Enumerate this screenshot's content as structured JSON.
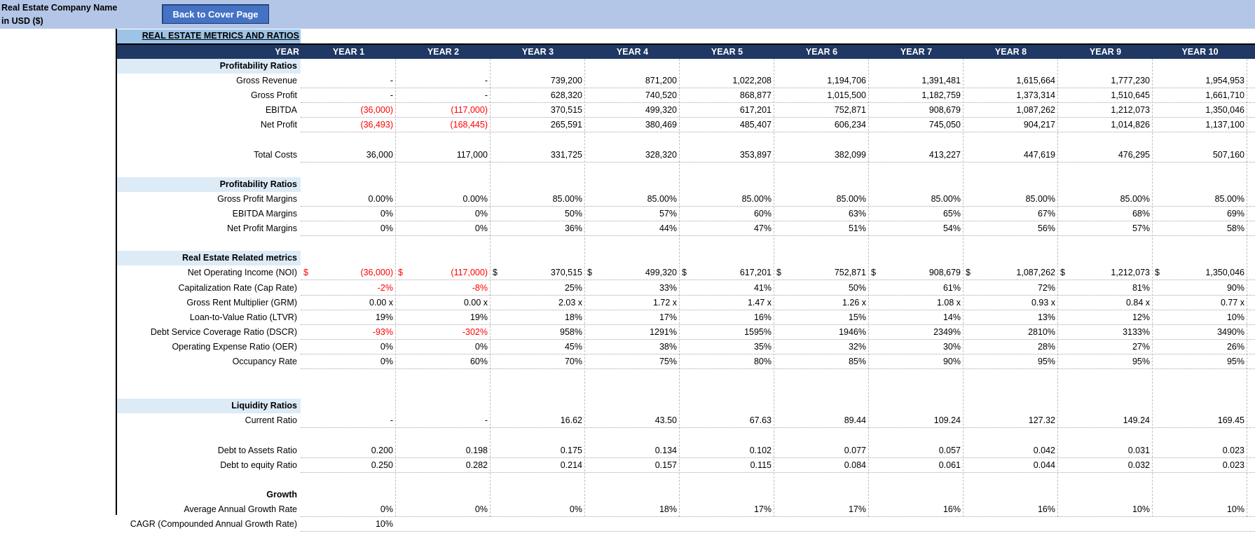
{
  "header": {
    "company_line1": "Real Estate Company Name",
    "company_line2": "in USD ($)",
    "back_button": "Back to Cover Page"
  },
  "sheet_title": "REAL ESTATE METRICS AND RATIOS",
  "year_label": "YEAR",
  "years": [
    "YEAR 1",
    "YEAR 2",
    "YEAR 3",
    "YEAR 4",
    "YEAR 5",
    "YEAR 6",
    "YEAR 7",
    "YEAR 8",
    "YEAR 9",
    "YEAR 10"
  ],
  "rows": [
    {
      "type": "section",
      "label": "Profitability Ratios"
    },
    {
      "label": "Gross Revenue",
      "values": [
        "-",
        "-",
        "739,200",
        "871,200",
        "1,022,208",
        "1,194,706",
        "1,391,481",
        "1,615,664",
        "1,777,230",
        "1,954,953"
      ]
    },
    {
      "label": "Gross Profit",
      "values": [
        "-",
        "-",
        "628,320",
        "740,520",
        "868,877",
        "1,015,500",
        "1,182,759",
        "1,373,314",
        "1,510,645",
        "1,661,710"
      ]
    },
    {
      "label": "EBITDA",
      "values": [
        "(36,000)",
        "(117,000)",
        "370,515",
        "499,320",
        "617,201",
        "752,871",
        "908,679",
        "1,087,262",
        "1,212,073",
        "1,350,046"
      ]
    },
    {
      "label": "Net Profit",
      "values": [
        "(36,493)",
        "(168,445)",
        "265,591",
        "380,469",
        "485,407",
        "606,234",
        "745,050",
        "904,217",
        "1,014,826",
        "1,137,100"
      ]
    },
    {
      "type": "blank"
    },
    {
      "label": "Total Costs",
      "values": [
        "36,000",
        "117,000",
        "331,725",
        "328,320",
        "353,897",
        "382,099",
        "413,227",
        "447,619",
        "476,295",
        "507,160"
      ]
    },
    {
      "type": "blank"
    },
    {
      "type": "section",
      "label": "Profitability Ratios"
    },
    {
      "label": "Gross Profit Margins",
      "values": [
        "0.00%",
        "0.00%",
        "85.00%",
        "85.00%",
        "85.00%",
        "85.00%",
        "85.00%",
        "85.00%",
        "85.00%",
        "85.00%"
      ]
    },
    {
      "label": "EBITDA Margins",
      "values": [
        "0%",
        "0%",
        "50%",
        "57%",
        "60%",
        "63%",
        "65%",
        "67%",
        "68%",
        "69%"
      ]
    },
    {
      "label": "Net Profit Margins",
      "values": [
        "0%",
        "0%",
        "36%",
        "44%",
        "47%",
        "51%",
        "54%",
        "56%",
        "57%",
        "58%"
      ]
    },
    {
      "type": "blank"
    },
    {
      "type": "section",
      "label": "Real Estate Related metrics"
    },
    {
      "label": "Net Operating Income (NOI)",
      "dollar": "$",
      "values": [
        "(36,000)",
        "(117,000)",
        "370,515",
        "499,320",
        "617,201",
        "752,871",
        "908,679",
        "1,087,262",
        "1,212,073",
        "1,350,046"
      ]
    },
    {
      "label": "Capitalization Rate (Cap Rate)",
      "values": [
        "-2%",
        "-8%",
        "25%",
        "33%",
        "41%",
        "50%",
        "61%",
        "72%",
        "81%",
        "90%"
      ]
    },
    {
      "label": "Gross Rent Multiplier (GRM)",
      "values": [
        "0.00 x",
        "0.00 x",
        "2.03 x",
        "1.72 x",
        "1.47 x",
        "1.26 x",
        "1.08 x",
        "0.93 x",
        "0.84 x",
        "0.77 x"
      ]
    },
    {
      "label": "Loan-to-Value Ratio (LTVR)",
      "values": [
        "19%",
        "19%",
        "18%",
        "17%",
        "16%",
        "15%",
        "14%",
        "13%",
        "12%",
        "10%"
      ]
    },
    {
      "label": "Debt Service Coverage Ratio (DSCR)",
      "values": [
        "-93%",
        "-302%",
        "958%",
        "1291%",
        "1595%",
        "1946%",
        "2349%",
        "2810%",
        "3133%",
        "3490%"
      ]
    },
    {
      "label": "Operating Expense Ratio (OER)",
      "values": [
        "0%",
        "0%",
        "45%",
        "38%",
        "35%",
        "32%",
        "30%",
        "28%",
        "27%",
        "26%"
      ]
    },
    {
      "label": "Occupancy Rate",
      "values": [
        "0%",
        "60%",
        "70%",
        "75%",
        "80%",
        "85%",
        "90%",
        "95%",
        "95%",
        "95%"
      ]
    },
    {
      "type": "blank"
    },
    {
      "type": "blank"
    },
    {
      "type": "section",
      "label": "Liquidity Ratios"
    },
    {
      "label": "Current Ratio",
      "values": [
        "-",
        "-",
        "16.62",
        "43.50",
        "67.63",
        "89.44",
        "109.24",
        "127.32",
        "149.24",
        "169.45"
      ]
    },
    {
      "type": "blank"
    },
    {
      "label": "Debt to Assets Ratio",
      "values": [
        "0.200",
        "0.198",
        "0.175",
        "0.134",
        "0.102",
        "0.077",
        "0.057",
        "0.042",
        "0.031",
        "0.023"
      ]
    },
    {
      "label": "Debt to equity Ratio",
      "values": [
        "0.250",
        "0.282",
        "0.214",
        "0.157",
        "0.115",
        "0.084",
        "0.061",
        "0.044",
        "0.032",
        "0.023"
      ]
    },
    {
      "type": "blank"
    },
    {
      "type": "section",
      "label": "Growth",
      "nobg": true
    },
    {
      "label": "Average Annual Growth Rate",
      "values": [
        "0%",
        "0%",
        "0%",
        "18%",
        "17%",
        "17%",
        "16%",
        "16%",
        "10%",
        "10%"
      ]
    },
    {
      "label": "CAGR (Compounded Annual Growth Rate)",
      "values": [
        "10%"
      ]
    }
  ],
  "colors": {
    "negative": "#ff0000",
    "header_bg": "#1f3864",
    "section_bg": "#ddebf7",
    "topbar": "#b4c6e7",
    "button": "#4472c4"
  }
}
